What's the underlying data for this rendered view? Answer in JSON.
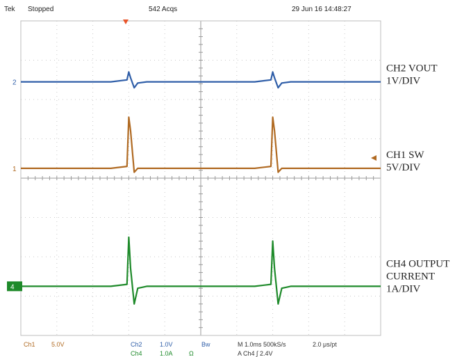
{
  "header": {
    "brand": "Tek",
    "state": "Stopped",
    "acqs": "542 Acqs",
    "datetime": "29 Jun 16 14:48:27"
  },
  "footer": {
    "ch1": "Ch1",
    "ch1_scale": "5.0V",
    "ch2": "Ch2",
    "ch2_scale": "1.0V",
    "ch4": "Ch4",
    "ch4_scale": "1.0A",
    "omega": "Ω",
    "bw": "Bw",
    "timebase": "M 1.0ms 500kS/s",
    "per_point": "2.0 μs/pt",
    "trigger": "A Ch4 ∫ 2.4V"
  },
  "colors": {
    "ch1": "#b06a22",
    "ch2": "#2f5ea8",
    "ch4": "#1e8a2a",
    "trigger_marker": "#e8542a"
  },
  "chart_data": {
    "type": "line",
    "title": "",
    "xlabel": "",
    "ylabel": "",
    "x_divisions": 10,
    "y_divisions": 8,
    "xlim": [
      0,
      10
    ],
    "ylim": [
      -4,
      4
    ],
    "x": [
      0,
      0.5,
      1,
      1.5,
      2,
      2.5,
      2.95,
      3.0,
      3.05,
      3.15,
      3.25,
      3.5,
      4,
      4.5,
      5,
      5.5,
      6,
      6.5,
      6.95,
      7.0,
      7.05,
      7.15,
      7.25,
      7.5,
      8,
      8.5,
      9,
      9.5,
      10
    ],
    "series": [
      {
        "name": "CH2 VOUT",
        "id": "ch2",
        "values": [
          2.45,
          2.45,
          2.45,
          2.45,
          2.45,
          2.45,
          2.5,
          2.7,
          2.55,
          2.3,
          2.42,
          2.45,
          2.45,
          2.45,
          2.45,
          2.45,
          2.45,
          2.45,
          2.5,
          2.7,
          2.55,
          2.3,
          2.42,
          2.45,
          2.45,
          2.45,
          2.45,
          2.45,
          2.45
        ]
      },
      {
        "name": "CH1 SW",
        "id": "ch1",
        "values": [
          0.25,
          0.25,
          0.25,
          0.25,
          0.25,
          0.25,
          0.3,
          1.55,
          1.2,
          0.15,
          0.25,
          0.25,
          0.25,
          0.25,
          0.25,
          0.25,
          0.25,
          0.25,
          0.3,
          1.55,
          1.2,
          0.15,
          0.25,
          0.25,
          0.25,
          0.25,
          0.25,
          0.25,
          0.25
        ]
      },
      {
        "name": "CH4 OUTPUT CURRENT",
        "id": "ch4",
        "values": [
          -2.75,
          -2.75,
          -2.75,
          -2.75,
          -2.75,
          -2.75,
          -2.7,
          -1.5,
          -2.3,
          -3.2,
          -2.8,
          -2.75,
          -2.75,
          -2.75,
          -2.75,
          -2.75,
          -2.75,
          -2.75,
          -2.7,
          -1.6,
          -2.3,
          -3.2,
          -2.8,
          -2.75,
          -2.75,
          -2.75,
          -2.75,
          -2.75,
          -2.75
        ]
      }
    ],
    "markers": [
      "2",
      "1",
      "4"
    ],
    "annotations": [
      {
        "id": "ch2",
        "lines": [
          "CH2 VOUT",
          "1V/DIV"
        ]
      },
      {
        "id": "ch1",
        "lines": [
          "CH1 SW",
          "5V/DIV"
        ]
      },
      {
        "id": "ch4",
        "lines": [
          "CH4 OUTPUT",
          "CURRENT",
          "1A/DIV"
        ]
      }
    ]
  }
}
